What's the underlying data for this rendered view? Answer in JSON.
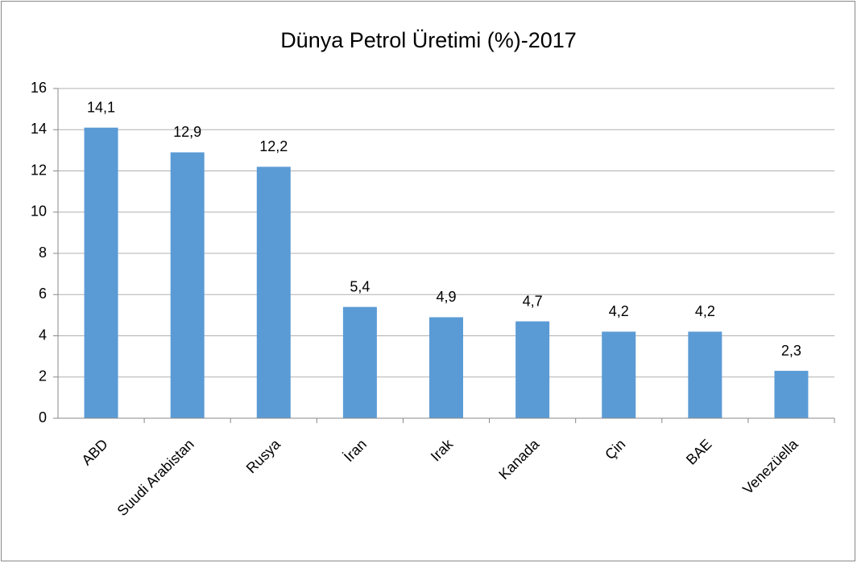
{
  "chart_data": {
    "type": "bar",
    "title": "Dünya Petrol Üretimi (%)-2017",
    "categories": [
      "ABD",
      "Suudi Arabistan",
      "Rusya",
      "İran",
      "Irak",
      "Kanada",
      "Çin",
      "BAE",
      "Venezüella"
    ],
    "values": [
      14.1,
      12.9,
      12.2,
      5.4,
      4.9,
      4.7,
      4.2,
      4.2,
      2.3
    ],
    "value_labels": [
      "14,1",
      "12,9",
      "12,2",
      "5,4",
      "4,9",
      "4,7",
      "4,2",
      "4,2",
      "2,3"
    ],
    "color": "#5b9bd5",
    "ylim": [
      0,
      16
    ],
    "yticks": [
      0,
      2,
      4,
      6,
      8,
      10,
      12,
      14,
      16
    ],
    "grid": true
  }
}
